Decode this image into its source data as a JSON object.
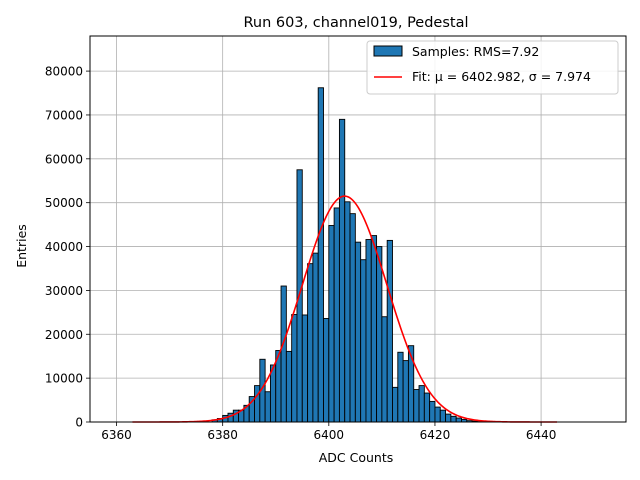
{
  "colors": {
    "bar_fill": "#1f77b4",
    "bar_edge": "#000000",
    "fit_line": "#ff0000",
    "grid": "#b0b0b0"
  },
  "chart_data": {
    "type": "bar",
    "title": "Run 603, channel019, Pedestal",
    "xlabel": "ADC Counts",
    "ylabel": "Entries",
    "xlim": [
      6355,
      6456
    ],
    "ylim": [
      0,
      88000
    ],
    "xticks": [
      6360,
      6380,
      6400,
      6420,
      6440
    ],
    "yticks": [
      0,
      10000,
      20000,
      30000,
      40000,
      50000,
      60000,
      70000,
      80000
    ],
    "grid": true,
    "legend_position": "top-right",
    "legend": {
      "hist_label": "Samples: RMS=7.92",
      "fit_label": "Fit: μ = 6402.982, σ = 7.974"
    },
    "histogram": {
      "name": "Samples: RMS=7.92",
      "bin_width": 1,
      "bin_starts": [
        6378,
        6379,
        6380,
        6381,
        6382,
        6383,
        6384,
        6385,
        6386,
        6387,
        6388,
        6389,
        6390,
        6391,
        6392,
        6393,
        6394,
        6395,
        6396,
        6397,
        6398,
        6399,
        6400,
        6401,
        6402,
        6403,
        6404,
        6405,
        6406,
        6407,
        6408,
        6409,
        6410,
        6411,
        6412,
        6413,
        6414,
        6415,
        6416,
        6417,
        6418,
        6419,
        6420,
        6421,
        6422,
        6423,
        6424,
        6425,
        6426,
        6427,
        6428
      ],
      "values": [
        500,
        800,
        1500,
        2000,
        2700,
        2700,
        3800,
        5800,
        8300,
        14300,
        6900,
        13000,
        16300,
        31000,
        16100,
        24500,
        57500,
        24400,
        36100,
        38500,
        76200,
        23600,
        44800,
        48800,
        69000,
        50200,
        47500,
        41000,
        37000,
        41600,
        42500,
        40000,
        24000,
        41400,
        7900,
        15900,
        14000,
        17400,
        7400,
        8300,
        6600,
        4700,
        3400,
        2700,
        1800,
        1300,
        900,
        600,
        300,
        200,
        100
      ]
    },
    "fit": {
      "name": "Fit: μ = 6402.982, σ = 7.974",
      "mu": 6402.982,
      "sigma": 7.974,
      "amplitude": 51500,
      "x_range": [
        6363,
        6443
      ]
    }
  }
}
